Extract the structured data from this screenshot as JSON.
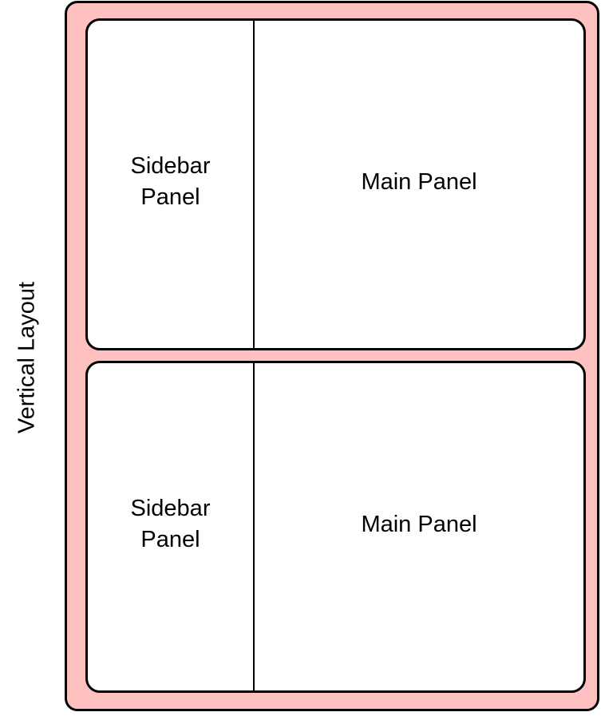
{
  "layout_label": "Vertical Layout",
  "colors": {
    "frame_fill": "#ffc0c0",
    "frame_border": "#000000",
    "panel_fill": "#ffffff"
  },
  "rows": [
    {
      "sidebar_label": "Sidebar Panel",
      "main_label": "Main Panel"
    },
    {
      "sidebar_label": "Sidebar Panel",
      "main_label": "Main Panel"
    }
  ]
}
